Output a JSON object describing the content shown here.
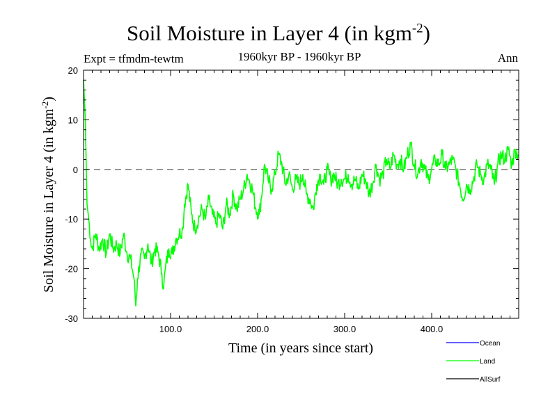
{
  "chart_data": {
    "type": "line",
    "title": "Soil Moisture in Layer 4 (in kgm",
    "title_sup": "-2",
    "title_close": ")",
    "expt": "Expt = tfmdm-tewtm",
    "period": "1960kyr BP - 1960kyr BP",
    "season": "Ann",
    "xlabel": "Time (in years since start)",
    "ylabel": "Soil Moisture in Layer 4 (in kgm",
    "ylabel_sup": "-2",
    "ylabel_close": ")",
    "xlim": [
      0,
      500
    ],
    "ylim": [
      -30,
      20
    ],
    "x_tick_labels": [
      {
        "value": 100,
        "label": "100.0"
      },
      {
        "value": 200,
        "label": "200.0"
      },
      {
        "value": 300,
        "label": "300.0"
      },
      {
        "value": 400,
        "label": "400.0"
      }
    ],
    "y_tick_labels": [
      {
        "value": 20,
        "label": "20"
      },
      {
        "value": 10,
        "label": "10"
      },
      {
        "value": 0,
        "label": "0"
      },
      {
        "value": -10,
        "label": "-10"
      },
      {
        "value": -20,
        "label": "-20"
      },
      {
        "value": -30,
        "label": "-30"
      }
    ],
    "reference_line": {
      "y": 0,
      "style": "dashed"
    },
    "legend": [
      {
        "name": "Ocean",
        "color": "#0000ff"
      },
      {
        "name": "Land",
        "color": "#00ff00"
      },
      {
        "name": "AllSurf",
        "color": "#000000"
      }
    ],
    "series": [
      {
        "name": "Land",
        "color": "#00ff00",
        "anchors": [
          [
            0,
            18
          ],
          [
            2,
            10
          ],
          [
            4,
            -7
          ],
          [
            6,
            -10
          ],
          [
            8,
            -14
          ],
          [
            10,
            -16
          ],
          [
            14,
            -13
          ],
          [
            18,
            -16
          ],
          [
            22,
            -14
          ],
          [
            26,
            -17
          ],
          [
            30,
            -13
          ],
          [
            34,
            -16
          ],
          [
            38,
            -15
          ],
          [
            42,
            -17
          ],
          [
            46,
            -13
          ],
          [
            50,
            -17
          ],
          [
            54,
            -18
          ],
          [
            58,
            -22
          ],
          [
            60,
            -27.5
          ],
          [
            62,
            -22
          ],
          [
            66,
            -17
          ],
          [
            70,
            -18
          ],
          [
            74,
            -15
          ],
          [
            78,
            -19
          ],
          [
            82,
            -16
          ],
          [
            86,
            -17
          ],
          [
            90,
            -21
          ],
          [
            92,
            -24
          ],
          [
            94,
            -20
          ],
          [
            98,
            -16
          ],
          [
            102,
            -17
          ],
          [
            106,
            -14
          ],
          [
            110,
            -13
          ],
          [
            114,
            -12
          ],
          [
            116,
            -7
          ],
          [
            120,
            -3
          ],
          [
            124,
            -9
          ],
          [
            128,
            -12
          ],
          [
            132,
            -10
          ],
          [
            136,
            -8
          ],
          [
            140,
            -10
          ],
          [
            144,
            -6
          ],
          [
            148,
            -9
          ],
          [
            152,
            -11
          ],
          [
            156,
            -9
          ],
          [
            160,
            -12
          ],
          [
            164,
            -7
          ],
          [
            168,
            -9
          ],
          [
            172,
            -5
          ],
          [
            176,
            -8
          ],
          [
            180,
            -6
          ],
          [
            184,
            -4
          ],
          [
            188,
            -1
          ],
          [
            190,
            -2
          ],
          [
            194,
            -4
          ],
          [
            198,
            -8
          ],
          [
            202,
            -9
          ],
          [
            206,
            -3
          ],
          [
            208,
            1
          ],
          [
            212,
            -2
          ],
          [
            216,
            -4
          ],
          [
            220,
            -1
          ],
          [
            224,
            3
          ],
          [
            228,
            1
          ],
          [
            232,
            -3
          ],
          [
            236,
            -1
          ],
          [
            240,
            -4
          ],
          [
            244,
            -2
          ],
          [
            248,
            -3
          ],
          [
            252,
            -1
          ],
          [
            256,
            -5
          ],
          [
            260,
            -6
          ],
          [
            264,
            -8
          ],
          [
            268,
            -3
          ],
          [
            272,
            -1
          ],
          [
            276,
            -3
          ],
          [
            280,
            0
          ],
          [
            284,
            -2
          ],
          [
            288,
            -1
          ],
          [
            292,
            -3
          ],
          [
            296,
            -2
          ],
          [
            300,
            -2
          ],
          [
            304,
            -1
          ],
          [
            308,
            -3
          ],
          [
            312,
            -2
          ],
          [
            316,
            -4
          ],
          [
            320,
            -1
          ],
          [
            324,
            -2
          ],
          [
            328,
            -5
          ],
          [
            332,
            -3
          ],
          [
            336,
            1
          ],
          [
            340,
            -2
          ],
          [
            344,
            -1
          ],
          [
            348,
            2
          ],
          [
            352,
            0
          ],
          [
            356,
            3
          ],
          [
            360,
            1
          ],
          [
            364,
            2
          ],
          [
            368,
            0
          ],
          [
            372,
            3
          ],
          [
            376,
            5
          ],
          [
            380,
            1
          ],
          [
            384,
            -1
          ],
          [
            388,
            2
          ],
          [
            392,
            0
          ],
          [
            396,
            -2
          ],
          [
            400,
            0
          ],
          [
            404,
            2
          ],
          [
            408,
            1
          ],
          [
            412,
            3
          ],
          [
            416,
            0
          ],
          [
            420,
            1
          ],
          [
            424,
            2
          ],
          [
            428,
            0
          ],
          [
            432,
            -3
          ],
          [
            436,
            -6
          ],
          [
            440,
            -3
          ],
          [
            444,
            -4
          ],
          [
            448,
            -2
          ],
          [
            452,
            1
          ],
          [
            456,
            -1
          ],
          [
            460,
            -2
          ],
          [
            464,
            1
          ],
          [
            468,
            0
          ],
          [
            472,
            -3
          ],
          [
            476,
            1
          ],
          [
            480,
            3
          ],
          [
            484,
            2
          ],
          [
            488,
            4
          ],
          [
            492,
            1
          ],
          [
            496,
            4
          ],
          [
            499,
            3
          ]
        ]
      }
    ]
  }
}
